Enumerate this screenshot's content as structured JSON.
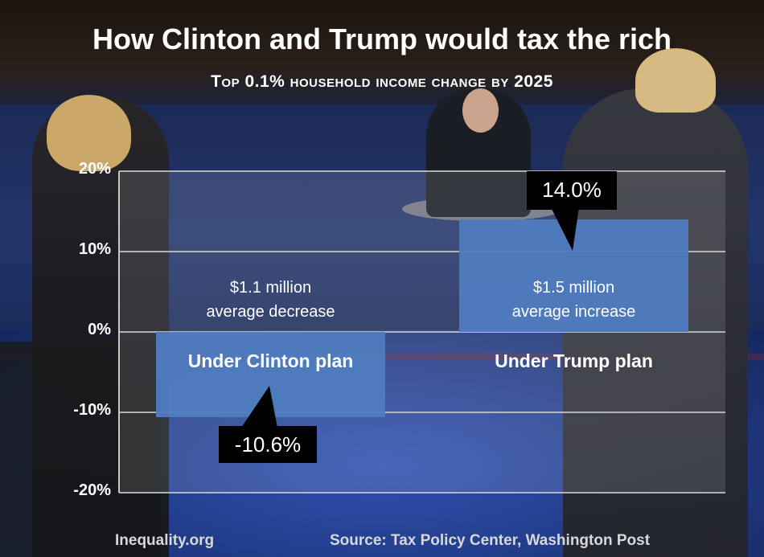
{
  "chart_data": {
    "type": "bar",
    "title": "How Clinton and Trump would tax the rich",
    "subtitle": "Top 0.1% household income change by 2025",
    "categories": [
      "Under Clinton plan",
      "Under Trump plan"
    ],
    "values": [
      -10.6,
      14.0
    ],
    "value_labels": [
      "-10.6%",
      "14.0%"
    ],
    "notes": [
      "$1.1 million\naverage decrease",
      "$1.5 million\naverage increase"
    ],
    "yticks": [
      "-20%",
      "-10%",
      "0%",
      "10%",
      "20%"
    ],
    "ytick_values": [
      -20,
      -10,
      0,
      10,
      20
    ],
    "ylim": [
      -20,
      20
    ],
    "grid": true,
    "bar_color": "#4f7cc0"
  },
  "footer": {
    "left": "Inequality.org",
    "right": "Source: Tax Policy Center, Washington Post"
  }
}
